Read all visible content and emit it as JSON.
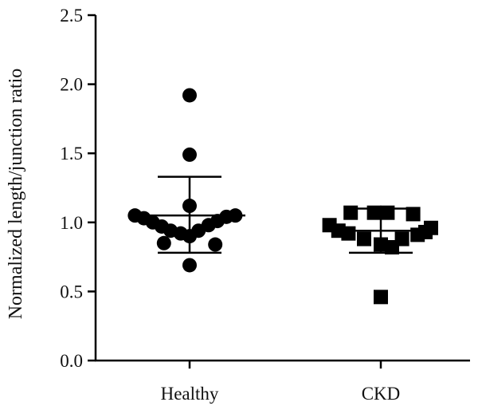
{
  "chart_data": {
    "type": "scatter",
    "ylabel": "Normalized length/junction ratio",
    "xlabel": "",
    "ylim": [
      0,
      2.5
    ],
    "yticks": [
      "0.0",
      "0.5",
      "1.0",
      "1.5",
      "2.0",
      "2.5"
    ],
    "categories": [
      "Healthy",
      "CKD"
    ],
    "grid": false,
    "series": [
      {
        "category": "Healthy",
        "marker": "circle",
        "color": "#000000",
        "points": [
          {
            "offset": 0.0,
            "value": 1.92
          },
          {
            "offset": 0.0,
            "value": 1.49
          },
          {
            "offset": 0.0,
            "value": 1.12
          },
          {
            "offset": -0.49,
            "value": 1.05
          },
          {
            "offset": -0.41,
            "value": 1.03
          },
          {
            "offset": -0.33,
            "value": 1.0
          },
          {
            "offset": -0.25,
            "value": 0.97
          },
          {
            "offset": -0.17,
            "value": 0.94
          },
          {
            "offset": -0.08,
            "value": 0.92
          },
          {
            "offset": 0.0,
            "value": 0.9
          },
          {
            "offset": 0.08,
            "value": 0.94
          },
          {
            "offset": 0.17,
            "value": 0.98
          },
          {
            "offset": 0.25,
            "value": 1.01
          },
          {
            "offset": 0.33,
            "value": 1.04
          },
          {
            "offset": 0.41,
            "value": 1.05
          },
          {
            "offset": -0.23,
            "value": 0.85
          },
          {
            "offset": 0.23,
            "value": 0.84
          },
          {
            "offset": 0.0,
            "value": 0.69
          }
        ],
        "mean": 1.05,
        "sd_upper": 1.33,
        "sd_lower": 0.78
      },
      {
        "category": "CKD",
        "marker": "square",
        "color": "#000000",
        "points": [
          {
            "offset": -0.46,
            "value": 0.98
          },
          {
            "offset": -0.38,
            "value": 0.94
          },
          {
            "offset": -0.27,
            "value": 1.07
          },
          {
            "offset": -0.29,
            "value": 0.92
          },
          {
            "offset": -0.15,
            "value": 0.88
          },
          {
            "offset": -0.06,
            "value": 1.07
          },
          {
            "offset": 0.06,
            "value": 1.07
          },
          {
            "offset": 0.0,
            "value": 0.84
          },
          {
            "offset": 0.1,
            "value": 0.82
          },
          {
            "offset": 0.19,
            "value": 0.88
          },
          {
            "offset": 0.29,
            "value": 1.06
          },
          {
            "offset": 0.33,
            "value": 0.91
          },
          {
            "offset": 0.4,
            "value": 0.93
          },
          {
            "offset": 0.45,
            "value": 0.96
          },
          {
            "offset": 0.0,
            "value": 0.46
          }
        ],
        "mean": 0.94,
        "sd_upper": 1.1,
        "sd_lower": 0.78
      }
    ]
  }
}
